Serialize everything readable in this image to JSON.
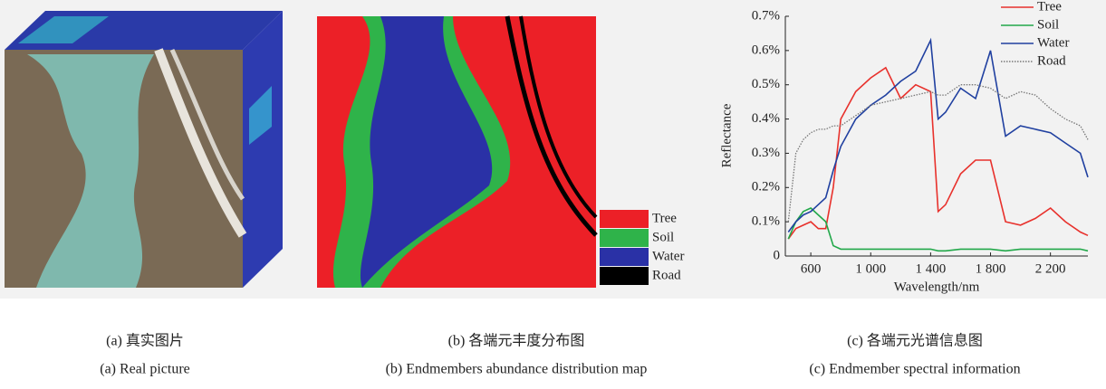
{
  "panel_a": {
    "caption_zh": "(a) 真实图片",
    "caption_en": "(a) Real picture"
  },
  "panel_b": {
    "caption_zh": "(b) 各端元丰度分布图",
    "caption_en": "(b) Endmembers abundance distribution map",
    "legend": [
      {
        "name": "Tree",
        "color": "#ec2027"
      },
      {
        "name": "Soil",
        "color": "#2fb34a"
      },
      {
        "name": "Water",
        "color": "#2a31a6"
      },
      {
        "name": "Road",
        "color": "#000000"
      }
    ]
  },
  "panel_c": {
    "caption_zh": "(c) 各端元光谱信息图",
    "caption_en": "(c) Endmember spectral information"
  },
  "chart_data": {
    "type": "line",
    "x_label": "Wavelength/nm",
    "y_label": "Reflectance",
    "x": [
      450,
      500,
      550,
      600,
      650,
      700,
      750,
      800,
      900,
      1000,
      1100,
      1200,
      1300,
      1400,
      1450,
      1500,
      1600,
      1700,
      1800,
      1900,
      2000,
      2100,
      2200,
      2300,
      2400,
      2450
    ],
    "series": [
      {
        "name": "Tree",
        "color": "#e8312c",
        "style": "solid",
        "values": [
          0.05,
          0.08,
          0.09,
          0.1,
          0.08,
          0.08,
          0.2,
          0.4,
          0.48,
          0.52,
          0.55,
          0.46,
          0.5,
          0.48,
          0.13,
          0.15,
          0.24,
          0.28,
          0.28,
          0.1,
          0.09,
          0.11,
          0.14,
          0.1,
          0.07,
          0.06
        ]
      },
      {
        "name": "Soil",
        "color": "#22a84a",
        "style": "solid",
        "values": [
          0.05,
          0.1,
          0.13,
          0.14,
          0.12,
          0.1,
          0.03,
          0.02,
          0.02,
          0.02,
          0.02,
          0.02,
          0.02,
          0.02,
          0.015,
          0.015,
          0.02,
          0.02,
          0.02,
          0.015,
          0.02,
          0.02,
          0.02,
          0.02,
          0.02,
          0.015
        ]
      },
      {
        "name": "Water",
        "color": "#2040a0",
        "style": "solid",
        "values": [
          0.07,
          0.1,
          0.12,
          0.13,
          0.15,
          0.17,
          0.25,
          0.32,
          0.4,
          0.44,
          0.47,
          0.51,
          0.54,
          0.63,
          0.4,
          0.42,
          0.49,
          0.46,
          0.6,
          0.35,
          0.38,
          0.37,
          0.36,
          0.33,
          0.3,
          0.23
        ]
      },
      {
        "name": "Road",
        "color": "#777777",
        "style": "dotted",
        "values": [
          0.1,
          0.3,
          0.34,
          0.36,
          0.37,
          0.37,
          0.38,
          0.38,
          0.41,
          0.44,
          0.45,
          0.46,
          0.47,
          0.48,
          0.47,
          0.47,
          0.5,
          0.5,
          0.49,
          0.46,
          0.48,
          0.47,
          0.43,
          0.4,
          0.38,
          0.34
        ]
      }
    ],
    "xlim": [
      430,
      2450
    ],
    "ylim": [
      0,
      0.7
    ],
    "xticks": [
      600,
      {
        "value": 1000,
        "label": "1 000"
      },
      {
        "value": 1400,
        "label": "1 400"
      },
      {
        "value": 1800,
        "label": "1 800"
      },
      {
        "value": 2200,
        "label": "2 200"
      }
    ],
    "yticks": [
      0,
      {
        "value": 0.1,
        "label": "0.1%"
      },
      {
        "value": 0.2,
        "label": "0.2%"
      },
      {
        "value": 0.3,
        "label": "0.3%"
      },
      {
        "value": 0.4,
        "label": "0.4%"
      },
      {
        "value": 0.5,
        "label": "0.5%"
      },
      {
        "value": 0.6,
        "label": "0.6%"
      },
      {
        "value": 0.7,
        "label": "0.7%"
      }
    ],
    "legend": "upper right"
  }
}
